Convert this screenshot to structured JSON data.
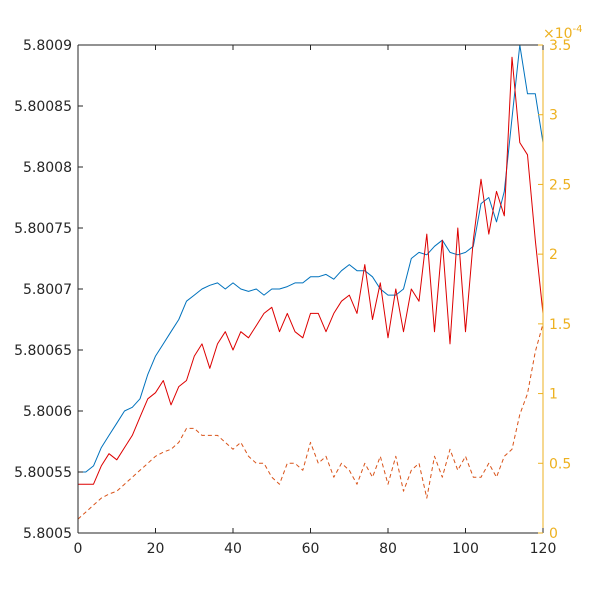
{
  "chart_data": {
    "type": "line",
    "x": [
      0,
      2,
      4,
      6,
      8,
      10,
      12,
      14,
      16,
      18,
      20,
      22,
      24,
      26,
      28,
      30,
      32,
      34,
      36,
      38,
      40,
      42,
      44,
      46,
      48,
      50,
      52,
      54,
      56,
      58,
      60,
      62,
      64,
      66,
      68,
      70,
      72,
      74,
      76,
      78,
      80,
      82,
      84,
      86,
      88,
      90,
      92,
      94,
      96,
      98,
      100,
      102,
      104,
      106,
      108,
      110,
      112,
      114,
      116,
      118,
      120
    ],
    "xlim": [
      0,
      120
    ],
    "xticks": [
      0,
      20,
      40,
      60,
      80,
      100,
      120
    ],
    "ylim_left": [
      5.8005,
      5.8009
    ],
    "yticks_left": [
      "5.8005",
      "5.80055",
      "5.8006",
      "5.80065",
      "5.8007",
      "5.80075",
      "5.8008",
      "5.80085",
      "5.8009"
    ],
    "ylim_right": [
      0,
      3.5
    ],
    "yticks_right": [
      "0",
      "0.5",
      "1",
      "1.5",
      "2",
      "2.5",
      "3",
      "3.5"
    ],
    "right_exponent": "×10",
    "right_exponent_power": "-4",
    "right_axis_color": "#EDB120",
    "series": [
      {
        "axis": "left",
        "color": "#0072BD",
        "style": "solid",
        "values": [
          5.80055,
          5.80055,
          5.800555,
          5.80057,
          5.80058,
          5.80059,
          5.8006,
          5.800603,
          5.80061,
          5.80063,
          5.800645,
          5.800655,
          5.800665,
          5.800675,
          5.80069,
          5.800695,
          5.8007,
          5.800703,
          5.800705,
          5.8007,
          5.800705,
          5.8007,
          5.800698,
          5.8007,
          5.800695,
          5.8007,
          5.8007,
          5.800702,
          5.800705,
          5.800705,
          5.80071,
          5.80071,
          5.800712,
          5.800708,
          5.800715,
          5.80072,
          5.800715,
          5.800715,
          5.80071,
          5.8007,
          5.800695,
          5.800695,
          5.8007,
          5.800725,
          5.80073,
          5.800728,
          5.800735,
          5.80074,
          5.80073,
          5.800728,
          5.80073,
          5.800735,
          5.80077,
          5.800775,
          5.800755,
          5.80078,
          5.80084,
          5.8009,
          5.80086,
          5.80086,
          5.80082
        ]
      },
      {
        "axis": "left",
        "color": "#DD0000",
        "style": "solid",
        "values": [
          5.80054,
          5.80054,
          5.80054,
          5.800555,
          5.800565,
          5.80056,
          5.80057,
          5.80058,
          5.800595,
          5.80061,
          5.800615,
          5.800625,
          5.800605,
          5.80062,
          5.800625,
          5.800645,
          5.800655,
          5.800635,
          5.800655,
          5.800665,
          5.80065,
          5.800665,
          5.80066,
          5.80067,
          5.80068,
          5.800685,
          5.800665,
          5.80068,
          5.800665,
          5.80066,
          5.80068,
          5.80068,
          5.800665,
          5.80068,
          5.80069,
          5.800695,
          5.80068,
          5.80072,
          5.800675,
          5.800705,
          5.80066,
          5.8007,
          5.800665,
          5.8007,
          5.80069,
          5.800745,
          5.800665,
          5.80074,
          5.800655,
          5.80075,
          5.800665,
          5.80074,
          5.80079,
          5.800745,
          5.80078,
          5.80076,
          5.80089,
          5.80082,
          5.80081,
          5.80074,
          5.80068
        ]
      },
      {
        "axis": "right",
        "color": "#D95319",
        "style": "dashed",
        "values": [
          0.1,
          0.15,
          0.2,
          0.25,
          0.28,
          0.3,
          0.35,
          0.4,
          0.45,
          0.5,
          0.55,
          0.58,
          0.6,
          0.65,
          0.75,
          0.75,
          0.7,
          0.7,
          0.7,
          0.65,
          0.6,
          0.65,
          0.55,
          0.5,
          0.5,
          0.4,
          0.35,
          0.5,
          0.5,
          0.45,
          0.65,
          0.5,
          0.55,
          0.4,
          0.5,
          0.45,
          0.35,
          0.5,
          0.4,
          0.55,
          0.35,
          0.55,
          0.3,
          0.45,
          0.5,
          0.25,
          0.55,
          0.4,
          0.6,
          0.45,
          0.55,
          0.4,
          0.4,
          0.5,
          0.4,
          0.55,
          0.6,
          0.85,
          1.0,
          1.3,
          1.5
        ]
      }
    ]
  }
}
